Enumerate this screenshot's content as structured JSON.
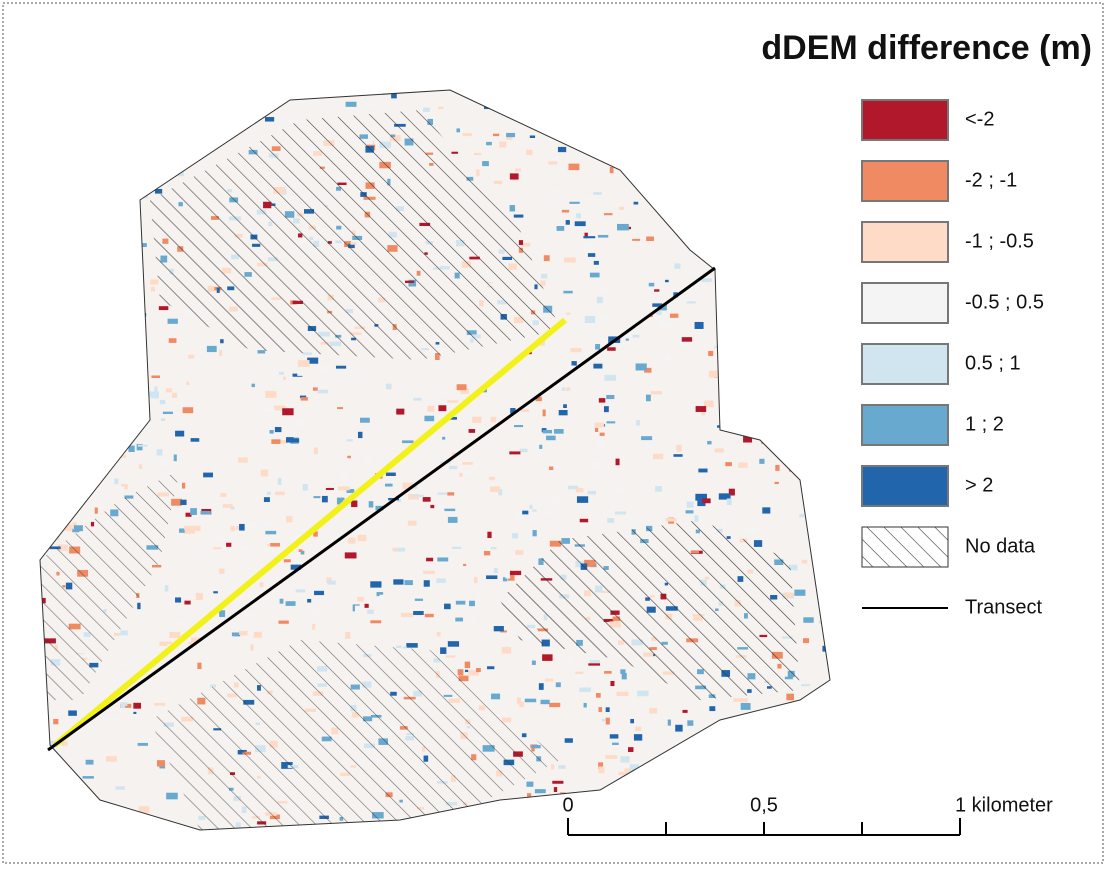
{
  "title": "dDEM difference (m)",
  "legend": {
    "classes": [
      {
        "label": "<-2",
        "color": "#b2182b"
      },
      {
        "label": "-2 ; -1",
        "color": "#ef8a62"
      },
      {
        "label": "-1 ; -0.5",
        "color": "#fddbc7"
      },
      {
        "label": "-0.5 ; 0.5",
        "color": "#f4f4f4"
      },
      {
        "label": "0.5 ; 1",
        "color": "#d1e5f0"
      },
      {
        "label": "1 ; 2",
        "color": "#67a9cf"
      },
      {
        "label": "> 2",
        "color": "#2166ac"
      }
    ],
    "no_data": "No data",
    "transect": "Transect"
  },
  "scale_bar": {
    "labels": [
      "0",
      "0,5",
      "1 kilometer"
    ]
  }
}
